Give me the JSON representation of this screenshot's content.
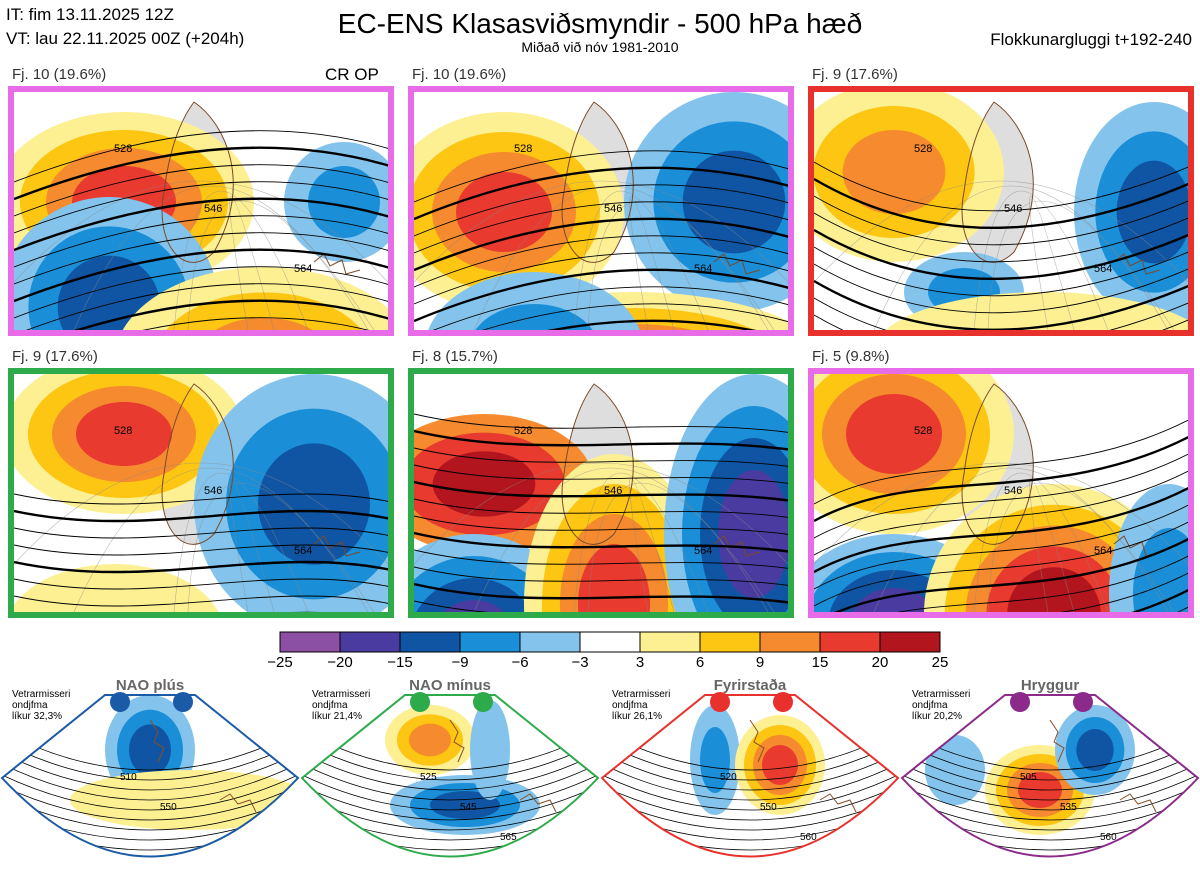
{
  "header": {
    "issue_time": "IT: fim 13.11.2025 12Z",
    "valid_time": "VT: lau 22.11.2025 00Z  (+204h)",
    "title": "EC-ENS Klasasviðsmyndir - 500 hPa hæð",
    "subtitle": "Miðað við nóv 1981-2010",
    "window": "Flokkunargluggi t+192-240"
  },
  "crop_label": "CR OP",
  "colors": {
    "pink": "#e86be8",
    "red": "#e8312c",
    "green": "#2daa4a",
    "blue": "#1a5aa6",
    "purple": "#8b2a8b"
  },
  "panels": [
    {
      "caption": "Fj. 10 (19.6%)",
      "border": "pink"
    },
    {
      "caption": "Fj. 10 (19.6%)",
      "border": "pink"
    },
    {
      "caption": "Fj. 9 (17.6%)",
      "border": "red"
    },
    {
      "caption": "Fj. 9 (17.6%)",
      "border": "green"
    },
    {
      "caption": "Fj. 8 (15.7%)",
      "border": "green"
    },
    {
      "caption": "Fj. 5 (9.8%)",
      "border": "pink"
    }
  ],
  "contour_labels": [
    "528",
    "546",
    "564"
  ],
  "colorbar": {
    "bounds": [
      "−25",
      "−20",
      "−15",
      "−9",
      "−6",
      "−3",
      "3",
      "6",
      "9",
      "15",
      "20",
      "25"
    ],
    "colors": [
      "#8b4fa3",
      "#4a3ba0",
      "#0f55a3",
      "#1a8fd8",
      "#84c4ec",
      "#ffffff",
      "#fdf093",
      "#fcc612",
      "#f58a2e",
      "#e83a2e",
      "#b3151e"
    ]
  },
  "regimes": [
    {
      "title": "NAO plús",
      "note_lines": [
        "Vetrarmisseri",
        "ondjfma",
        "líkur 32,3%"
      ],
      "color": "blue",
      "labels": [
        "510",
        "550"
      ]
    },
    {
      "title": "NAO mínus",
      "note_lines": [
        "Vetrarmisseri",
        "ondjfma",
        "líkur 21,4%"
      ],
      "color": "green",
      "labels": [
        "525",
        "545",
        "565"
      ]
    },
    {
      "title": "Fyrirstaða",
      "note_lines": [
        "Vetrarmisseri",
        "ondjfma",
        "líkur 26,1%"
      ],
      "color": "red",
      "labels": [
        "520",
        "550",
        "560"
      ]
    },
    {
      "title": "Hryggur",
      "note_lines": [
        "Vetrarmisseri",
        "ondjfma",
        "líkur 20,2%"
      ],
      "color": "purple",
      "labels": [
        "505",
        "535",
        "560"
      ]
    }
  ],
  "chart_data": {
    "type": "heatmap",
    "title": "EC-ENS Klasasviðsmyndir - 500 hPa hæð",
    "subtitle": "Miðað við nóv 1981-2010",
    "variable": "500 hPa height anomaly (dam) with height contours",
    "clusters": [
      {
        "name": "Fj. 10",
        "probability_pct": 19.6,
        "regime": "Hryggur"
      },
      {
        "name": "Fj. 10",
        "probability_pct": 19.6,
        "regime": "Hryggur"
      },
      {
        "name": "Fj. 9",
        "probability_pct": 17.6,
        "regime": "Fyrirstaða"
      },
      {
        "name": "Fj. 9",
        "probability_pct": 17.6,
        "regime": "NAO mínus"
      },
      {
        "name": "Fj. 8",
        "probability_pct": 15.7,
        "regime": "NAO mínus"
      },
      {
        "name": "Fj. 5",
        "probability_pct": 9.8,
        "regime": "Hryggur"
      }
    ],
    "colorbar_bounds": [
      -25,
      -20,
      -15,
      -9,
      -6,
      -3,
      3,
      6,
      9,
      15,
      20,
      25
    ],
    "contour_levels": [
      528,
      546,
      564
    ],
    "regime_probabilities": [
      {
        "regime": "NAO plús",
        "probability_pct": 32.3
      },
      {
        "regime": "NAO mínus",
        "probability_pct": 21.4
      },
      {
        "regime": "Fyrirstaða",
        "probability_pct": 26.1
      },
      {
        "regime": "Hryggur",
        "probability_pct": 20.2
      }
    ]
  }
}
